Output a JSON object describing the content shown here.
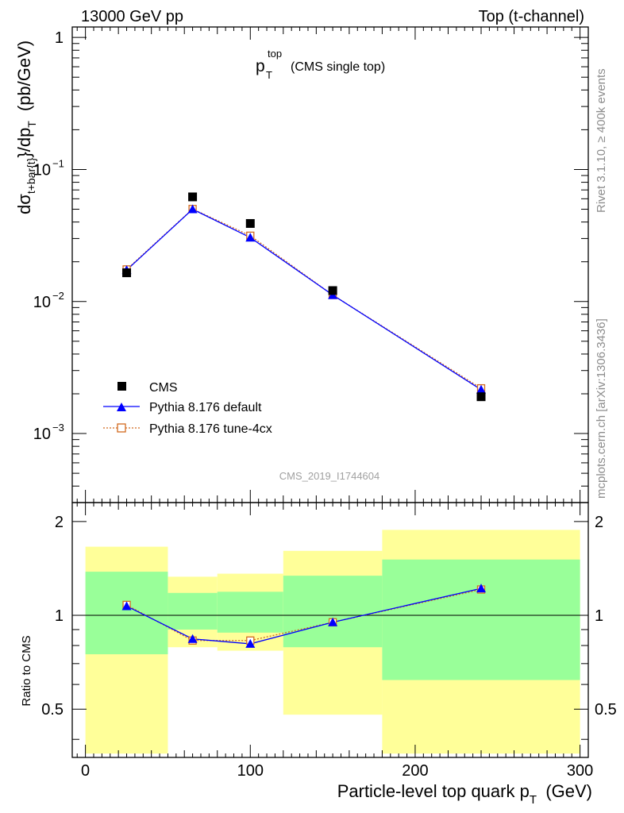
{
  "header": {
    "energy": "13000 GeV pp",
    "process": "Top (t-channel)"
  },
  "side_labels": {
    "rivet": "Rivet 3.1.10, ≥ 400k events",
    "mcplots": "mcplots.cern.ch [arXiv:1306.3436]"
  },
  "chart_data": [
    {
      "type": "scatter",
      "title_main": "p",
      "title_sup": "top",
      "title_sub": "T",
      "title_note": "(CMS single top)",
      "ylabel_parts": {
        "d_sigma": "dσ",
        "sigma_sub": "t+bar{t}",
        "mid": "}/dp",
        "pt_sub": "T",
        "unit": "(pb/GeV)"
      },
      "yscale": "log",
      "ylim": [
        0.0003,
        1.2
      ],
      "ytick_labels": [
        "1",
        "10",
        "10",
        "10"
      ],
      "ytick_exps": [
        "",
        "−1",
        "−2",
        "−3"
      ],
      "analysis_id": "CMS_2019_I1744604",
      "legend_position": "bottom-left",
      "series": [
        {
          "name": "CMS",
          "color": "#000000",
          "marker": "square",
          "x": [
            25,
            65,
            100,
            150,
            240
          ],
          "y": [
            0.0165,
            0.062,
            0.039,
            0.0121,
            0.0019
          ]
        },
        {
          "name": "Pythia 8.176 default",
          "color": "#0000ff",
          "marker": "triangle",
          "line": "solid",
          "x": [
            25,
            65,
            100,
            150,
            240
          ],
          "y": [
            0.0173,
            0.05,
            0.0305,
            0.0112,
            0.00215
          ]
        },
        {
          "name": "Pythia 8.176 tune-4cx",
          "color": "#d2691e",
          "marker": "open-square",
          "line": "dotted",
          "x": [
            25,
            65,
            100,
            150,
            240
          ],
          "y": [
            0.0175,
            0.0502,
            0.0315,
            0.0112,
            0.0022
          ]
        }
      ]
    },
    {
      "type": "area",
      "ylabel": "Ratio to CMS",
      "xlabel_main": "Particle-level top quark p",
      "xlabel_sub": "T",
      "xlabel_unit": "(GeV)",
      "xlim": [
        -8,
        305
      ],
      "ylim": [
        0.35,
        2.3
      ],
      "xtick_labels": [
        "0",
        "100",
        "200",
        "300"
      ],
      "xtick_values": [
        0,
        100,
        200,
        300
      ],
      "ytick_labels": [
        "2",
        "1",
        "0.5"
      ],
      "ytick_values": [
        2,
        1,
        0.5
      ],
      "bands": {
        "edges": [
          0,
          50,
          80,
          120,
          180,
          300
        ],
        "inner_low": [
          0.75,
          0.9,
          0.88,
          0.79,
          0.62
        ],
        "inner_high": [
          1.38,
          1.18,
          1.19,
          1.34,
          1.51
        ],
        "outer_low": [
          0.36,
          0.79,
          0.77,
          0.48,
          0.36
        ],
        "outer_high": [
          1.66,
          1.33,
          1.36,
          1.61,
          1.88
        ],
        "inner_color": "#99ff99",
        "outer_color": "#ffff99"
      },
      "series": [
        {
          "name": "Pythia 8.176 default",
          "color": "#0000ff",
          "marker": "triangle",
          "x": [
            25,
            65,
            100,
            150,
            240
          ],
          "y": [
            1.07,
            0.84,
            0.81,
            0.95,
            1.22
          ]
        },
        {
          "name": "Pythia 8.176 tune-4cx",
          "color": "#d2691e",
          "marker": "open-square",
          "x": [
            25,
            65,
            100,
            150,
            240
          ],
          "y": [
            1.08,
            0.83,
            0.83,
            0.95,
            1.21
          ]
        }
      ]
    }
  ]
}
